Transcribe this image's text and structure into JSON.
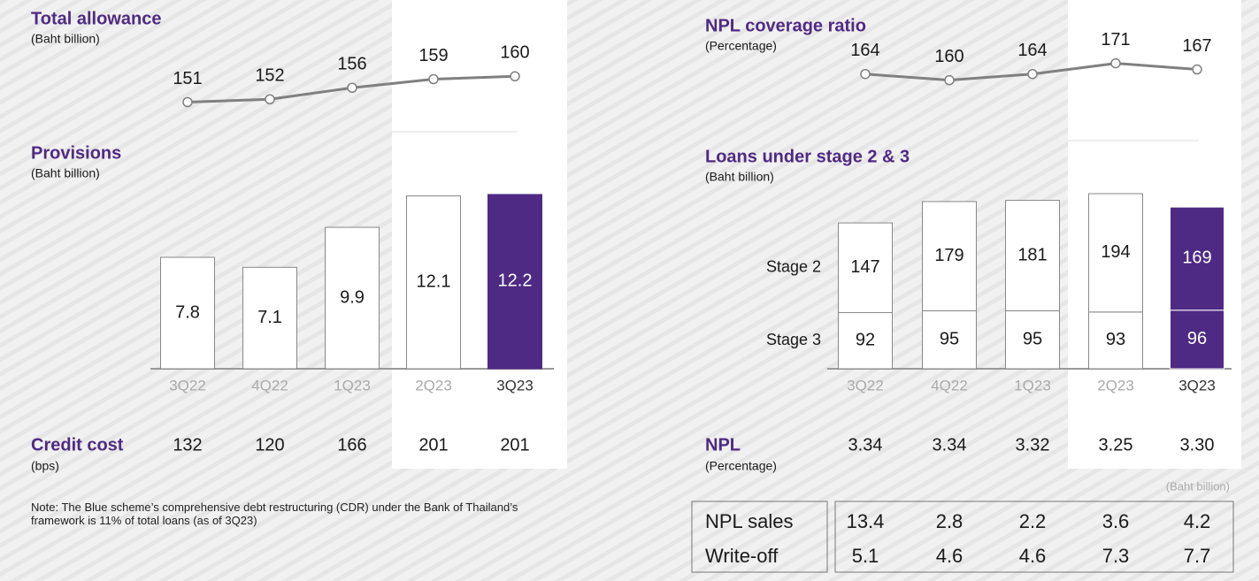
{
  "chart_data": [
    {
      "type": "line",
      "title": "Total allowance",
      "subtitle": "(Baht billion)",
      "categories": [
        "3Q22",
        "4Q22",
        "1Q23",
        "2Q23",
        "3Q23"
      ],
      "values": [
        151,
        152,
        156,
        159,
        160
      ],
      "ylim": [
        145,
        165
      ],
      "color": "#808080"
    },
    {
      "type": "bar",
      "title": "Provisions",
      "subtitle": "(Baht billion)",
      "categories": [
        "3Q22",
        "4Q22",
        "1Q23",
        "2Q23",
        "3Q23"
      ],
      "values": [
        7.8,
        7.1,
        9.9,
        12.1,
        12.2
      ],
      "ylim": [
        0,
        13
      ],
      "color": "#ffffff",
      "highlight_color": "#4e2a84"
    },
    {
      "type": "line",
      "title": "NPL coverage ratio",
      "subtitle": "(Percentage)",
      "categories": [
        "3Q22",
        "4Q22",
        "1Q23",
        "2Q23",
        "3Q23"
      ],
      "values": [
        164,
        160,
        164,
        171,
        167
      ],
      "ylim": [
        150,
        180
      ],
      "color": "#808080"
    },
    {
      "type": "stacked_bar",
      "title": "Loans under stage 2 & 3",
      "subtitle": "(Baht billion)",
      "categories": [
        "3Q22",
        "4Q22",
        "1Q23",
        "2Q23",
        "3Q23"
      ],
      "series": [
        {
          "name": "Stage 3",
          "values": [
            92,
            95,
            95,
            93,
            96
          ]
        },
        {
          "name": "Stage 2",
          "values": [
            147,
            179,
            181,
            194,
            169
          ]
        }
      ],
      "ylim": [
        0,
        300
      ],
      "color": "#ffffff",
      "highlight_color": "#4e2a84"
    }
  ],
  "credit_cost": {
    "label": "Credit cost",
    "unit": "(bps)",
    "values": [
      "132",
      "120",
      "166",
      "201",
      "201"
    ]
  },
  "npl": {
    "label": "NPL",
    "unit": "(Percentage)",
    "values": [
      "3.34",
      "3.34",
      "3.32",
      "3.25",
      "3.30"
    ]
  },
  "npl_table": {
    "unit": "(Baht billion)",
    "rows": [
      [
        "NPL sales",
        "13.4",
        "2.8",
        "2.2",
        "3.6",
        "4.2"
      ],
      [
        "Write-off",
        "5.1",
        "4.6",
        "4.6",
        "7.3",
        "7.7"
      ]
    ]
  },
  "note": "Note: The Blue scheme’s comprehensive debt restructuring (CDR) under the Bank of Thailand’s framework is 11% of total loans (as of 3Q23)"
}
